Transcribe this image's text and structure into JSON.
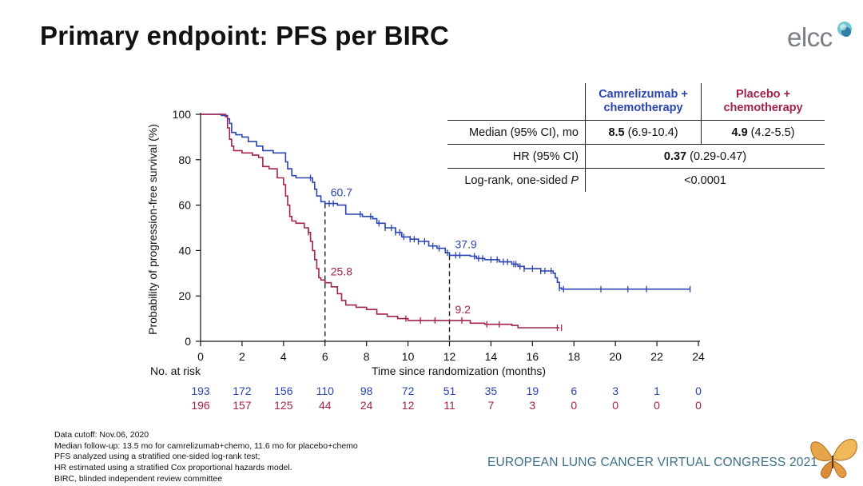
{
  "slide": {
    "title": "Primary endpoint: PFS per BIRC",
    "logo_text": "elcc",
    "congress": "EUROPEAN LUNG CANCER VIRTUAL CONGRESS 2021",
    "footnotes": [
      "Data cutoff: Nov.06, 2020",
      "Median follow-up: 13.5 mo for camrelizumab+chemo, 11.6 mo for placebo+chemo",
      "PFS analyzed using a stratified one-sided log-rank test;",
      "HR estimated using a stratified Cox proportional hazards model.",
      "BIRC, blinded independent review committee"
    ]
  },
  "colors": {
    "blue": "#2a44b0",
    "red": "#a3224e",
    "congress": "#3c6f8a"
  },
  "summary_table": {
    "head_blue": [
      "Camrelizumab +",
      "chemotherapy"
    ],
    "head_red": [
      "Placebo +",
      "chemotherapy"
    ],
    "median_label": "Median (95% CI), mo",
    "median_blue_value": "8.5",
    "median_blue_ci": " (6.9-10.4)",
    "median_red_value": "4.9",
    "median_red_ci": " (4.2-5.5)",
    "hr_label": "HR (95% CI)",
    "hr_value": "0.37",
    "hr_ci": " (0.29-0.47)",
    "logrank_label": "Log-rank, one-sided ",
    "logrank_p": "P",
    "logrank_value": "<0.0001"
  },
  "chart_data": {
    "type": "line",
    "xlabel": "Time since randomization (months)",
    "ylabel": "Probability of progression-free survival (%)",
    "xlim": [
      0,
      24
    ],
    "ylim": [
      0,
      100
    ],
    "xticks": [
      0,
      2,
      4,
      6,
      8,
      10,
      12,
      14,
      16,
      18,
      20,
      22,
      24
    ],
    "yticks": [
      0,
      20,
      40,
      60,
      80,
      100
    ],
    "risk_label": "No. at risk",
    "annotations": [
      {
        "text": "60.7",
        "x": 6,
        "y": 60.7,
        "series": "blue"
      },
      {
        "text": "25.8",
        "x": 6,
        "y": 25.8,
        "series": "red"
      },
      {
        "text": "37.9",
        "x": 12,
        "y": 37.9,
        "series": "blue"
      },
      {
        "text": "9.2",
        "x": 12,
        "y": 9.2,
        "series": "red"
      }
    ],
    "reference_lines": [
      {
        "x": 6,
        "y_top": 60.7
      },
      {
        "x": 12,
        "y_top": 37.9
      }
    ],
    "series": [
      {
        "key": "blue",
        "color": "#2a44b0",
        "points": [
          [
            0,
            100
          ],
          [
            1,
            99.5
          ],
          [
            1.3,
            98
          ],
          [
            1.4,
            96
          ],
          [
            1.5,
            92
          ],
          [
            1.7,
            91
          ],
          [
            2,
            90
          ],
          [
            2.3,
            88
          ],
          [
            2.7,
            86
          ],
          [
            3,
            84
          ],
          [
            3.5,
            83
          ],
          [
            4,
            83
          ],
          [
            4.1,
            79
          ],
          [
            4.2,
            76
          ],
          [
            4.4,
            73
          ],
          [
            4.6,
            72
          ],
          [
            5,
            72
          ],
          [
            5.4,
            70
          ],
          [
            5.5,
            67
          ],
          [
            5.6,
            64
          ],
          [
            5.8,
            61.5
          ],
          [
            6,
            60.7
          ],
          [
            6.6,
            60
          ],
          [
            7,
            56
          ],
          [
            7.5,
            56
          ],
          [
            7.8,
            55
          ],
          [
            8.3,
            54
          ],
          [
            8.5,
            52
          ],
          [
            8.9,
            50
          ],
          [
            9.4,
            48
          ],
          [
            9.7,
            46
          ],
          [
            10.1,
            45
          ],
          [
            10.5,
            44
          ],
          [
            11,
            42
          ],
          [
            11.4,
            41
          ],
          [
            11.8,
            39
          ],
          [
            12,
            37.9
          ],
          [
            13,
            37.5
          ],
          [
            13.3,
            36.5
          ],
          [
            13.7,
            36
          ],
          [
            14.4,
            35
          ],
          [
            15,
            34
          ],
          [
            15.3,
            33
          ],
          [
            15.6,
            32
          ],
          [
            16.4,
            31
          ],
          [
            17,
            30
          ],
          [
            17.1,
            28
          ],
          [
            17.2,
            26
          ],
          [
            17.3,
            23.5
          ],
          [
            17.4,
            23
          ],
          [
            20,
            23
          ],
          [
            23.6,
            23
          ]
        ],
        "censor_x": [
          5.3,
          6.2,
          6.4,
          7.7,
          8.2,
          8.6,
          8.9,
          9.2,
          9.4,
          9.6,
          9.8,
          10.1,
          10.3,
          10.5,
          10.8,
          11.2,
          11.5,
          11.9,
          12.3,
          12.5,
          13.2,
          13.4,
          13.6,
          14.0,
          14.3,
          14.6,
          14.8,
          15.1,
          15.2,
          15.4,
          15.6,
          16.0,
          16.4,
          16.6,
          16.9,
          17.3,
          17.5,
          19.3,
          20.6,
          21.5,
          23.6
        ],
        "risk": [
          193,
          172,
          156,
          110,
          98,
          72,
          51,
          35,
          19,
          6,
          3,
          1,
          0
        ]
      },
      {
        "key": "red",
        "color": "#a3224e",
        "points": [
          [
            0,
            100
          ],
          [
            1.2,
            99
          ],
          [
            1.3,
            94
          ],
          [
            1.4,
            89
          ],
          [
            1.5,
            86
          ],
          [
            1.6,
            84
          ],
          [
            2,
            83
          ],
          [
            2.5,
            82
          ],
          [
            2.8,
            81
          ],
          [
            3,
            77
          ],
          [
            3.3,
            76
          ],
          [
            3.7,
            72
          ],
          [
            4,
            69
          ],
          [
            4.1,
            64
          ],
          [
            4.2,
            60
          ],
          [
            4.3,
            55
          ],
          [
            4.4,
            53
          ],
          [
            4.6,
            52
          ],
          [
            5,
            50
          ],
          [
            5.2,
            48
          ],
          [
            5.3,
            44
          ],
          [
            5.4,
            40
          ],
          [
            5.5,
            36
          ],
          [
            5.6,
            32
          ],
          [
            5.7,
            28
          ],
          [
            5.8,
            27
          ],
          [
            6,
            25.8
          ],
          [
            6.3,
            24
          ],
          [
            6.6,
            21
          ],
          [
            6.8,
            18
          ],
          [
            7,
            16
          ],
          [
            7.5,
            15
          ],
          [
            8,
            14
          ],
          [
            8.5,
            12
          ],
          [
            9,
            11
          ],
          [
            9.5,
            10
          ],
          [
            10,
            9.2
          ],
          [
            12,
            9.2
          ],
          [
            13,
            8
          ],
          [
            13.7,
            7.5
          ],
          [
            15,
            7
          ],
          [
            15.3,
            6
          ],
          [
            17.3,
            6
          ]
        ],
        "censor_x": [
          5.2,
          9.9,
          10.6,
          11.3,
          12.6,
          13.8,
          14.4,
          17.2,
          17.4
        ],
        "risk": [
          196,
          157,
          125,
          44,
          24,
          12,
          11,
          7,
          3,
          0,
          0,
          0,
          0
        ]
      }
    ]
  }
}
